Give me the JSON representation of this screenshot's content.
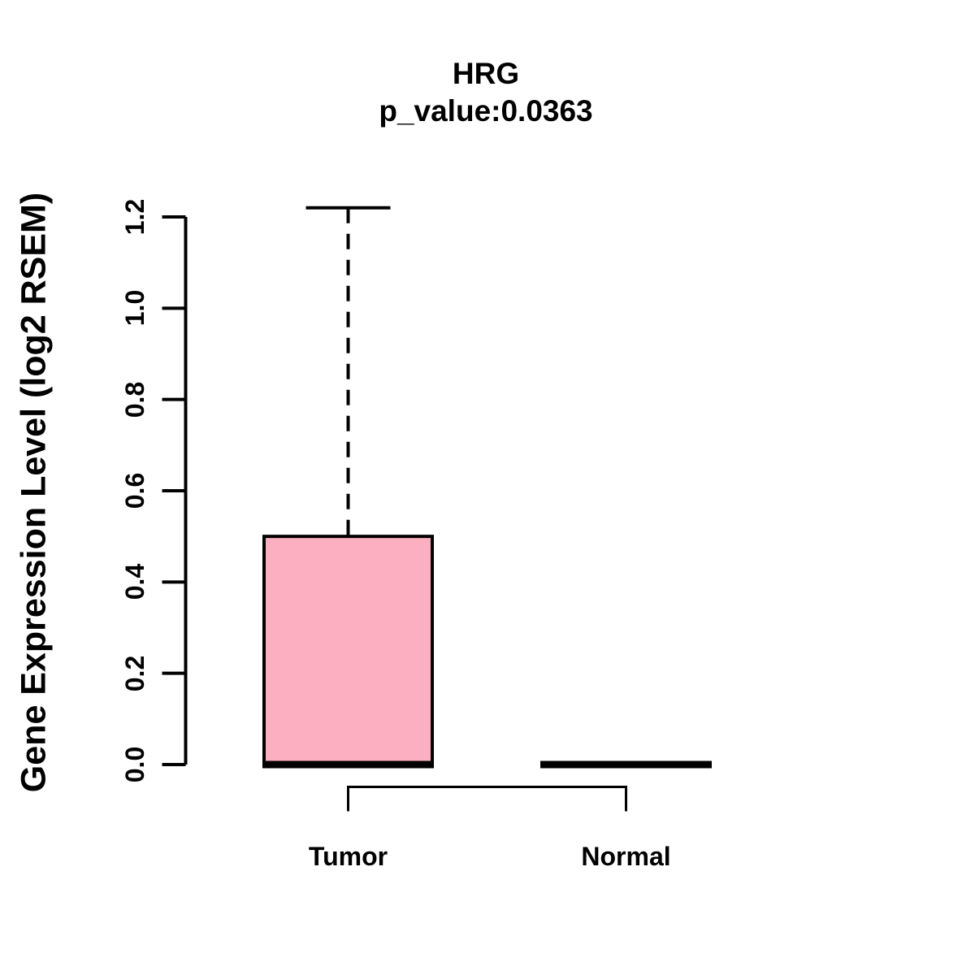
{
  "chart_data": {
    "type": "boxplot",
    "title": "HRG",
    "subtitle": "p_value:0.0363",
    "ylabel": "Gene Expression Level (log2 RSEM)",
    "categories": [
      "Tumor",
      "Normal"
    ],
    "ytick_labels": [
      "0.0",
      "0.2",
      "0.4",
      "0.6",
      "0.8",
      "1.0",
      "1.2"
    ],
    "ylim": [
      0.0,
      1.22
    ],
    "grid": false,
    "legend": "none",
    "series": [
      {
        "name": "Tumor",
        "lower_whisker": 0.0,
        "q1": 0.0,
        "median": 0.0,
        "q3": 0.5,
        "upper_whisker": 1.22
      },
      {
        "name": "Normal",
        "lower_whisker": 0.0,
        "q1": 0.0,
        "median": 0.0,
        "q3": 0.0,
        "upper_whisker": 0.0
      }
    ],
    "colors": {
      "box_fill": "#FCAFC0",
      "line": "#000000",
      "background": "#FFFFFF"
    },
    "annotations": {
      "comparison_bracket": {
        "from": "Tumor",
        "to": "Normal"
      }
    }
  }
}
